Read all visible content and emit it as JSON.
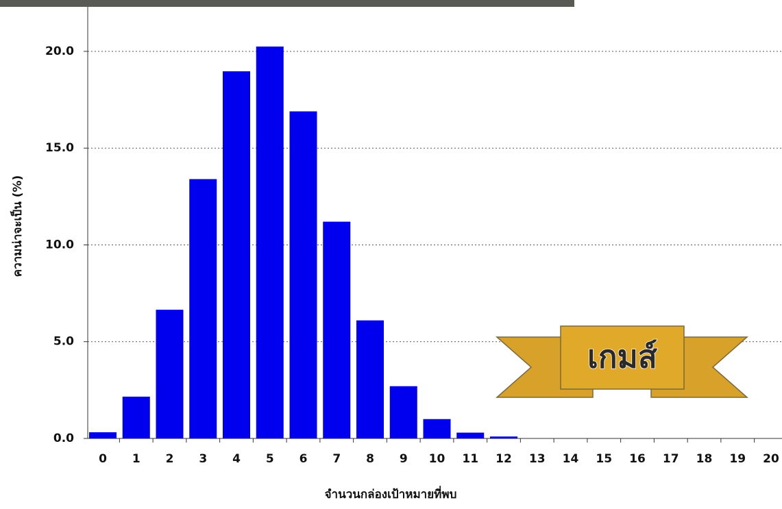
{
  "chart_data": {
    "type": "bar",
    "x_label": "จำนวนกล่องเป้าหมายที่พบ",
    "y_label": "ความน่าจะเป็น (%)",
    "annotation": "เกมส์",
    "categories": [
      "0",
      "1",
      "2",
      "3",
      "4",
      "5",
      "6",
      "7",
      "8",
      "9",
      "10",
      "11",
      "12",
      "13",
      "14",
      "15",
      "16",
      "17",
      "18",
      "19",
      "20"
    ],
    "values": [
      0.32,
      2.16,
      6.65,
      13.4,
      18.97,
      20.25,
      16.9,
      11.2,
      6.1,
      2.7,
      1.0,
      0.3,
      0.1,
      0,
      0,
      0,
      0,
      0,
      0,
      0,
      0
    ],
    "color": "#0000ee",
    "ylim": [
      0,
      22.3
    ],
    "yticks": [
      {
        "value": 0,
        "label": "0.0"
      },
      {
        "value": 5,
        "label": "5.0"
      },
      {
        "value": 10,
        "label": "10.0"
      },
      {
        "value": 15,
        "label": "15.0"
      },
      {
        "value": 20,
        "label": "20.0"
      }
    ],
    "grid": true
  }
}
